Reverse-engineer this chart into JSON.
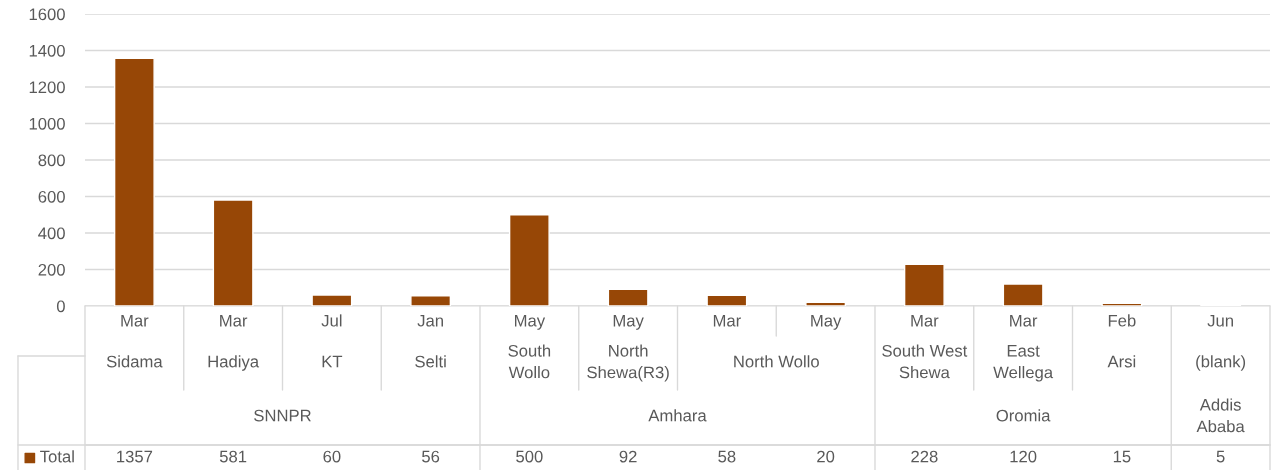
{
  "chart_data": {
    "type": "bar",
    "categories": [
      "Mar",
      "Mar",
      "Jul",
      "Jan",
      "May",
      "May",
      "Mar",
      "May",
      "Mar",
      "Mar",
      "Feb",
      "Jun"
    ],
    "series": [
      {
        "name": "Total",
        "color": "#974706",
        "values": [
          1357,
          581,
          60,
          56,
          500,
          92,
          58,
          20,
          228,
          120,
          15,
          5
        ]
      }
    ],
    "annotations": [
      "Sidama",
      "Hadiya",
      "KT",
      "Selti",
      "South\nWollo",
      "North\nShewa(R3)",
      "North Wollo",
      "South West\nShewa",
      "East\nWellega",
      "Arsi",
      "(blank)",
      "SNNPR",
      "Amhara",
      "Oromia",
      "Addis\nAbaba"
    ],
    "ylim": [
      0,
      1600
    ],
    "yticks": [
      0,
      200,
      400,
      600,
      800,
      1000,
      1200,
      1400,
      1600
    ],
    "grid": "y",
    "legend": "bottom",
    "data_labels": true
  }
}
